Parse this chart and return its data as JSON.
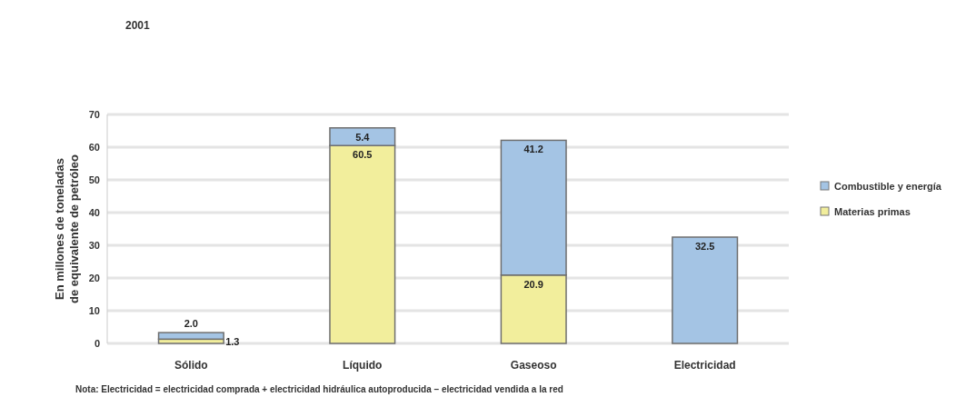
{
  "chart_data": {
    "type": "bar",
    "title": "2001",
    "ylabel": "En millones de toneladas\nde equivalente de petróleo",
    "categories": [
      "Sólido",
      "Líquido",
      "Gaseoso",
      "Electricidad"
    ],
    "stacked": true,
    "series": [
      {
        "name": "Materias primas",
        "color": "#f2ee9c",
        "values": [
          1.3,
          60.5,
          20.9,
          null
        ],
        "value_labels": [
          "1.3",
          "60.5",
          "20.9",
          null
        ]
      },
      {
        "name": "Combustible y energía",
        "color": "#a4c4e4",
        "values": [
          2.0,
          5.4,
          41.2,
          32.5
        ],
        "value_labels": [
          "2.0",
          "5.4",
          "41.2",
          "32.5"
        ]
      }
    ],
    "ylim": [
      0,
      70
    ],
    "yticks": [
      0,
      10,
      20,
      30,
      40,
      50,
      60,
      70
    ],
    "grid": "y",
    "legend": "right",
    "annotations": [
      "Nota: Electricidad = electricidad comprada + electricidad hidráulica autoproducida – electricidad vendida a la red"
    ]
  }
}
